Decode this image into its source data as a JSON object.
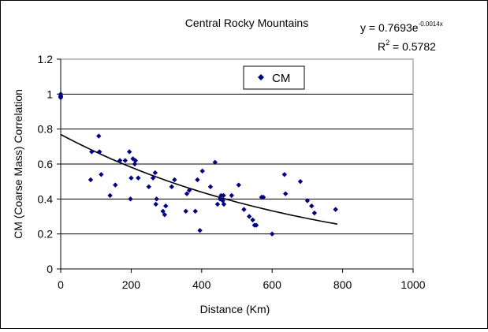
{
  "chart_data": {
    "type": "scatter",
    "title": "Central Rocky Mountains",
    "xlabel": "Distance (Km)",
    "ylabel": "CM (Coarse Mass) Correlation",
    "xlim": [
      0,
      1000
    ],
    "ylim": [
      0,
      1.2
    ],
    "x_ticks": [
      0,
      200,
      400,
      600,
      800,
      1000
    ],
    "y_ticks": [
      0,
      0.2,
      0.4,
      0.6,
      0.8,
      1,
      1.2
    ],
    "x_tick_labels": [
      "0",
      "200",
      "400",
      "600",
      "800",
      "1000"
    ],
    "y_tick_labels": [
      "0",
      "0.2",
      "0.4",
      "0.6",
      "0.8",
      "1",
      "1.2"
    ],
    "grid": "horizontal",
    "legend": {
      "placement": "top-center",
      "entries": [
        "CM"
      ]
    },
    "marker_color": "#000080",
    "trendline_color": "#000000",
    "trendline": {
      "type": "exponential",
      "a": 0.7693,
      "b": -0.0014,
      "x_range": [
        0,
        785
      ]
    },
    "annotations": {
      "equation_base": "y = 0.7693e",
      "equation_exponent": "-0.0014x",
      "r2_base": "R",
      "r2_super": "2",
      "r2_value": " = 0.5782"
    },
    "series": [
      {
        "name": "CM",
        "points": [
          [
            0,
            1.0
          ],
          [
            0,
            0.99
          ],
          [
            0,
            0.985
          ],
          [
            0,
            0.98
          ],
          [
            85,
            0.51
          ],
          [
            88,
            0.67
          ],
          [
            108,
            0.76
          ],
          [
            110,
            0.67
          ],
          [
            115,
            0.54
          ],
          [
            140,
            0.42
          ],
          [
            155,
            0.48
          ],
          [
            168,
            0.62
          ],
          [
            183,
            0.62
          ],
          [
            195,
            0.67
          ],
          [
            198,
            0.4
          ],
          [
            200,
            0.52
          ],
          [
            205,
            0.63
          ],
          [
            210,
            0.6
          ],
          [
            212,
            0.62
          ],
          [
            220,
            0.52
          ],
          [
            250,
            0.47
          ],
          [
            262,
            0.52
          ],
          [
            268,
            0.55
          ],
          [
            270,
            0.37
          ],
          [
            272,
            0.4
          ],
          [
            290,
            0.33
          ],
          [
            295,
            0.31
          ],
          [
            298,
            0.36
          ],
          [
            315,
            0.47
          ],
          [
            323,
            0.51
          ],
          [
            355,
            0.33
          ],
          [
            358,
            0.43
          ],
          [
            365,
            0.45
          ],
          [
            382,
            0.33
          ],
          [
            388,
            0.51
          ],
          [
            395,
            0.22
          ],
          [
            402,
            0.56
          ],
          [
            425,
            0.47
          ],
          [
            438,
            0.61
          ],
          [
            445,
            0.37
          ],
          [
            452,
            0.4
          ],
          [
            455,
            0.42
          ],
          [
            460,
            0.39
          ],
          [
            462,
            0.42
          ],
          [
            463,
            0.37
          ],
          [
            485,
            0.42
          ],
          [
            505,
            0.48
          ],
          [
            520,
            0.34
          ],
          [
            535,
            0.3
          ],
          [
            545,
            0.28
          ],
          [
            550,
            0.25
          ],
          [
            555,
            0.25
          ],
          [
            570,
            0.41
          ],
          [
            575,
            0.41
          ],
          [
            600,
            0.2
          ],
          [
            635,
            0.54
          ],
          [
            638,
            0.43
          ],
          [
            680,
            0.5
          ],
          [
            700,
            0.39
          ],
          [
            712,
            0.36
          ],
          [
            720,
            0.32
          ],
          [
            780,
            0.34
          ]
        ]
      }
    ]
  }
}
